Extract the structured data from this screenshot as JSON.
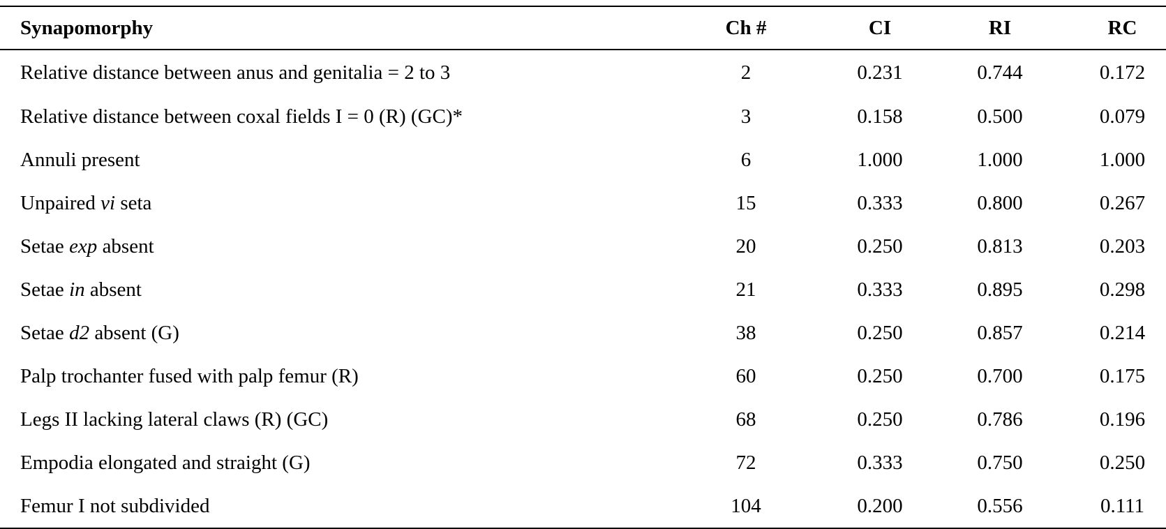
{
  "table": {
    "headers": {
      "synapomorphy": "Synapomorphy",
      "ch": "Ch #",
      "ci": "CI",
      "ri": "RI",
      "rc": "RC"
    },
    "rows": [
      {
        "pre": "Relative distance between anus and genitalia = 2 to 3",
        "ital": "",
        "post": "",
        "ch": "2",
        "ci": "0.231",
        "ri": "0.744",
        "rc": "0.172"
      },
      {
        "pre": "Relative distance between coxal fields I = 0 (R) (GC)*",
        "ital": "",
        "post": "",
        "ch": "3",
        "ci": "0.158",
        "ri": "0.500",
        "rc": "0.079"
      },
      {
        "pre": "Annuli present",
        "ital": "",
        "post": "",
        "ch": "6",
        "ci": "1.000",
        "ri": "1.000",
        "rc": "1.000"
      },
      {
        "pre": "Unpaired ",
        "ital": "vi",
        "post": " seta",
        "ch": "15",
        "ci": "0.333",
        "ri": "0.800",
        "rc": "0.267"
      },
      {
        "pre": "Setae ",
        "ital": "exp",
        "post": " absent",
        "ch": "20",
        "ci": "0.250",
        "ri": "0.813",
        "rc": "0.203"
      },
      {
        "pre": "Setae ",
        "ital": "in",
        "post": " absent",
        "ch": "21",
        "ci": "0.333",
        "ri": "0.895",
        "rc": "0.298"
      },
      {
        "pre": "Setae ",
        "ital": "d2",
        "post": " absent (G)",
        "ch": "38",
        "ci": "0.250",
        "ri": "0.857",
        "rc": "0.214"
      },
      {
        "pre": "Palp trochanter fused with palp femur (R)",
        "ital": "",
        "post": "",
        "ch": "60",
        "ci": "0.250",
        "ri": "0.700",
        "rc": "0.175"
      },
      {
        "pre": "Legs II lacking lateral claws (R) (GC)",
        "ital": "",
        "post": "",
        "ch": "68",
        "ci": "0.250",
        "ri": "0.786",
        "rc": "0.196"
      },
      {
        "pre": "Empodia elongated and straight (G)",
        "ital": "",
        "post": "",
        "ch": "72",
        "ci": "0.333",
        "ri": "0.750",
        "rc": "0.250"
      },
      {
        "pre": "Femur I not subdivided",
        "ital": "",
        "post": "",
        "ch": "104",
        "ci": "0.200",
        "ri": "0.556",
        "rc": "0.111"
      }
    ]
  }
}
